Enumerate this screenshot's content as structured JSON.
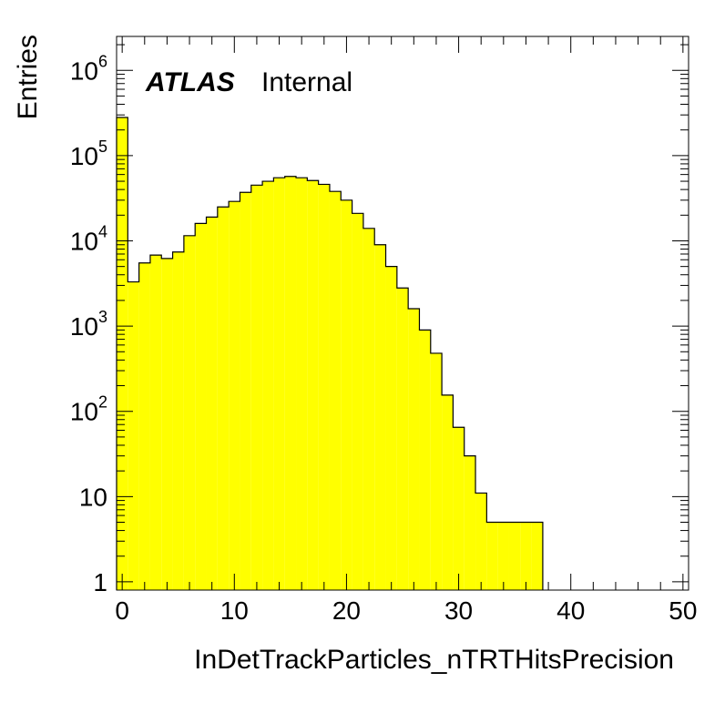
{
  "chart_data": {
    "type": "bar",
    "histogram": true,
    "xlabel": "InDetTrackParticles_nTRTHitsPrecision",
    "ylabel": "Entries",
    "annotation": {
      "experiment": "ATLAS",
      "status": "Internal"
    },
    "xlim": [
      -0.5,
      50.5
    ],
    "ylim": [
      0.8,
      2500000
    ],
    "yscale": "log",
    "grid": false,
    "fill_color": "#ffff00",
    "line_color": "#000000",
    "x_ticks": [
      "0",
      "10",
      "20",
      "30",
      "40",
      "50"
    ],
    "x_tick_values": [
      0,
      10,
      20,
      30,
      40,
      50
    ],
    "y_ticks": [
      {
        "value": 1,
        "base": "1",
        "exp": ""
      },
      {
        "value": 10,
        "base": "10",
        "exp": ""
      },
      {
        "value": 100,
        "base": "10",
        "exp": "2"
      },
      {
        "value": 1000,
        "base": "10",
        "exp": "3"
      },
      {
        "value": 10000,
        "base": "10",
        "exp": "4"
      },
      {
        "value": 100000,
        "base": "10",
        "exp": "5"
      },
      {
        "value": 1000000,
        "base": "10",
        "exp": "6"
      }
    ],
    "bins": {
      "x_low": [
        -0.5,
        0.5,
        1.5,
        2.5,
        3.5,
        4.5,
        5.5,
        6.5,
        7.5,
        8.5,
        9.5,
        10.5,
        11.5,
        12.5,
        13.5,
        14.5,
        15.5,
        16.5,
        17.5,
        18.5,
        19.5,
        20.5,
        21.5,
        22.5,
        23.5,
        24.5,
        25.5,
        26.5,
        27.5,
        28.5,
        29.5,
        30.5,
        31.5,
        32.5,
        33.5,
        34.5,
        35.5,
        36.5
      ],
      "values": [
        280000,
        3300,
        5500,
        6800,
        6200,
        7400,
        11500,
        16000,
        19000,
        25000,
        29000,
        37000,
        45000,
        50000,
        55000,
        57000,
        55000,
        51000,
        46000,
        38000,
        30000,
        21000,
        14000,
        9000,
        5000,
        2800,
        1600,
        900,
        480,
        155,
        65,
        30,
        11,
        5,
        5,
        5,
        5,
        5
      ]
    }
  }
}
